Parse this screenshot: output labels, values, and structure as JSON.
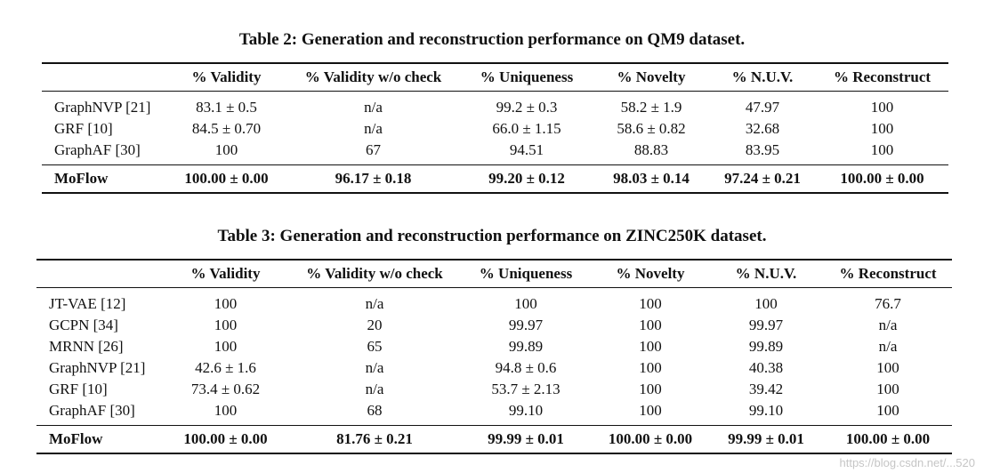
{
  "table2": {
    "caption": "Table 2: Generation and reconstruction performance on QM9 dataset.",
    "headers": [
      "",
      "% Validity",
      "% Validity w/o check",
      "% Uniqueness",
      "% Novelty",
      "% N.U.V.",
      "% Reconstruct"
    ],
    "rows": [
      [
        "GraphNVP [21]",
        "83.1 ± 0.5",
        "n/a",
        "99.2 ± 0.3",
        "58.2 ± 1.9",
        "47.97",
        "100"
      ],
      [
        "GRF [10]",
        "84.5 ± 0.70",
        "n/a",
        "66.0 ± 1.15",
        "58.6 ± 0.82",
        "32.68",
        "100"
      ],
      [
        "GraphAF [30]",
        "100",
        "67",
        "94.51",
        "88.83",
        "83.95",
        "100"
      ]
    ],
    "ours": [
      "MoFlow",
      "100.00 ± 0.00",
      "96.17 ± 0.18",
      "99.20 ± 0.12",
      "98.03 ± 0.14",
      "97.24 ± 0.21",
      "100.00 ± 0.00"
    ]
  },
  "table3": {
    "caption": "Table 3: Generation and reconstruction performance on ZINC250K dataset.",
    "headers": [
      "",
      "% Validity",
      "% Validity w/o check",
      "% Uniqueness",
      "% Novelty",
      "% N.U.V.",
      "% Reconstruct"
    ],
    "rows": [
      [
        "JT-VAE [12]",
        "100",
        "n/a",
        "100",
        "100",
        "100",
        "76.7"
      ],
      [
        "GCPN [34]",
        "100",
        "20",
        "99.97",
        "100",
        "99.97",
        "n/a"
      ],
      [
        "MRNN [26]",
        "100",
        "65",
        "99.89",
        "100",
        "99.89",
        "n/a"
      ],
      [
        "GraphNVP [21]",
        "42.6 ± 1.6",
        "n/a",
        "94.8 ± 0.6",
        "100",
        "40.38",
        "100"
      ],
      [
        "GRF [10]",
        "73.4 ± 0.62",
        "n/a",
        "53.7 ± 2.13",
        "100",
        "39.42",
        "100"
      ],
      [
        "GraphAF [30]",
        "100",
        "68",
        "99.10",
        "100",
        "99.10",
        "100"
      ]
    ],
    "ours": [
      "MoFlow",
      "100.00 ± 0.00",
      "81.76 ± 0.21",
      "99.99 ± 0.01",
      "100.00 ± 0.00",
      "99.99 ± 0.01",
      "100.00 ± 0.00"
    ]
  },
  "watermark": "https://blog.csdn.net/...520"
}
